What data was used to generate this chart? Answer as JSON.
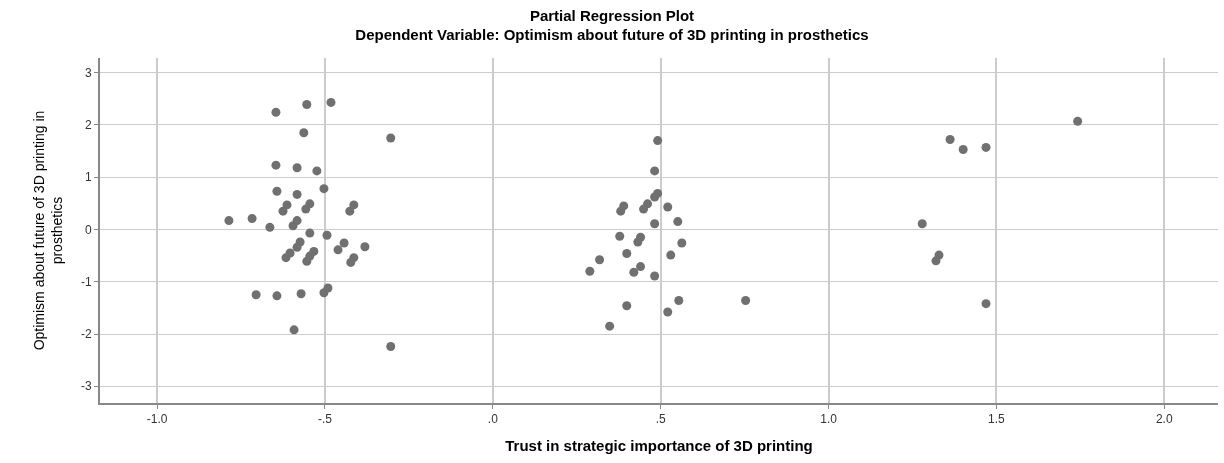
{
  "chart_data": {
    "type": "scatter",
    "title": "Partial Regression Plot",
    "subtitle": "Dependent Variable: Optimism about future of 3D printing in prosthetics",
    "xlabel": "Trust in strategic importance of 3D printing",
    "ylabel": "Optimism about future of 3D printing in prosthetics",
    "series": [
      {
        "color": "#707070",
        "x": [
          -0.646,
          -0.554,
          -0.482,
          -0.563,
          -0.304,
          -0.646,
          -0.583,
          -0.524,
          -0.503,
          -0.643,
          -0.583,
          -0.613,
          -0.625,
          -0.545,
          -0.557,
          -0.414,
          -0.426,
          -0.786,
          -0.717,
          -0.664,
          -0.583,
          -0.595,
          -0.545,
          -0.494,
          -0.574,
          -0.583,
          -0.443,
          -0.461,
          -0.381,
          -0.604,
          -0.616,
          -0.533,
          -0.545,
          -0.554,
          -0.414,
          -0.423,
          -0.705,
          -0.643,
          -0.571,
          -0.491,
          -0.503,
          -0.592,
          -0.304,
          0.491,
          0.482,
          0.491,
          0.482,
          0.39,
          0.381,
          0.461,
          0.449,
          0.521,
          0.482,
          0.551,
          0.378,
          0.44,
          0.432,
          0.563,
          0.399,
          0.53,
          0.318,
          0.289,
          0.44,
          0.42,
          0.482,
          0.554,
          0.753,
          0.399,
          0.521,
          0.348,
          1.742,
          1.362,
          1.401,
          1.469,
          1.279,
          1.329,
          1.32,
          1.469
        ],
        "values": [
          2.24,
          2.39,
          2.43,
          1.85,
          1.75,
          1.23,
          1.18,
          1.12,
          0.78,
          0.73,
          0.67,
          0.47,
          0.35,
          0.49,
          0.39,
          0.47,
          0.35,
          0.17,
          0.21,
          0.04,
          0.17,
          0.07,
          -0.07,
          -0.11,
          -0.24,
          -0.34,
          -0.26,
          -0.39,
          -0.33,
          -0.45,
          -0.54,
          -0.42,
          -0.51,
          -0.61,
          -0.54,
          -0.63,
          -1.25,
          -1.27,
          -1.23,
          -1.12,
          -1.21,
          -1.92,
          -2.24,
          1.7,
          1.12,
          0.69,
          0.62,
          0.45,
          0.35,
          0.49,
          0.39,
          0.43,
          0.11,
          0.15,
          -0.13,
          -0.15,
          -0.24,
          -0.26,
          -0.46,
          -0.49,
          -0.58,
          -0.8,
          -0.71,
          -0.82,
          -0.89,
          -1.36,
          -1.36,
          -1.46,
          -1.58,
          -1.85,
          2.07,
          1.72,
          1.53,
          1.57,
          0.11,
          -0.49,
          -0.6,
          -1.42
        ]
      }
    ],
    "xlim": [
      -1.17,
      2.16
    ],
    "ylim": [
      -3.32,
      3.28
    ],
    "xticks": [
      {
        "value": -1.0,
        "label": "-1.0"
      },
      {
        "value": -0.5,
        "label": "-.5"
      },
      {
        "value": 0,
        "label": ".0"
      },
      {
        "value": 0.5,
        "label": ".5"
      },
      {
        "value": 1.0,
        "label": "1.0"
      },
      {
        "value": 1.5,
        "label": "1.5"
      },
      {
        "value": 2.0,
        "label": "2.0"
      }
    ],
    "yticks": [
      -3,
      -2,
      -1,
      0,
      1,
      2,
      3
    ],
    "grid": true,
    "marker": "circle"
  }
}
